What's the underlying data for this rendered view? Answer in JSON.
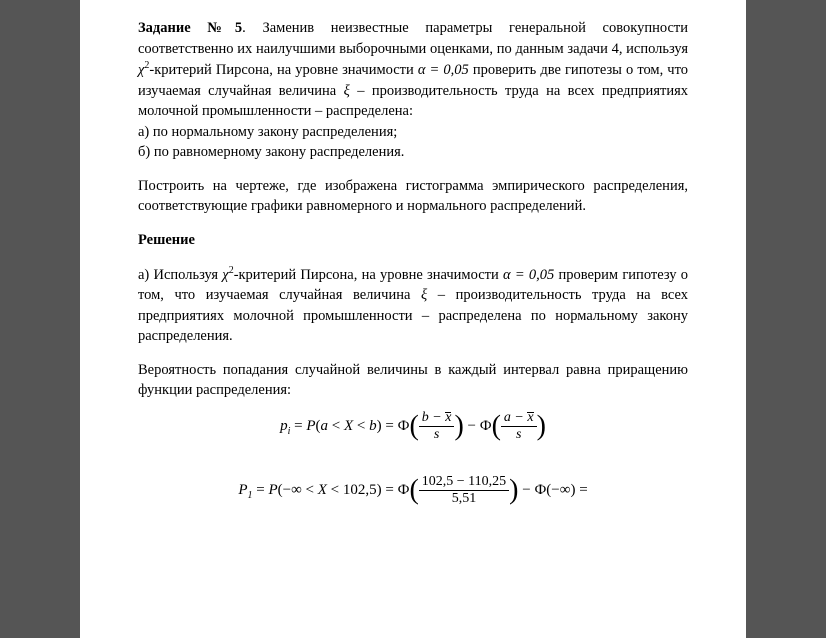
{
  "task_label": "Задание №5",
  "intro_text_1": ". Заменив неизвестные параметры генеральной совокупности соответственно их наилучшими выборочными оценками, по данным задачи 4, используя ",
  "chi2_label": "χ",
  "chi2_sup": "2",
  "intro_text_2": "-критерий Пирсона, на уровне значимости ",
  "alpha_expr": "α = 0,05",
  "intro_text_3": "      проверить две гипотезы о том, что изучаемая случайная величина                              ",
  "xi_var": "ξ",
  "intro_text_4": " – производительность труда на всех предприятиях молочной промышленности – распределена:",
  "item_a": "а) по нормальному закону распределения;",
  "item_b": "б) по равномерному закону распределения.",
  "para2": "Построить на чертеже, где изображена гистограмма эмпирического распределения, соответствующие графики равномерного и нормального распределений.",
  "solution_header": "Решение",
  "sol_a_1": "а) Используя ",
  "sol_a_2": "-критерий Пирсона, на уровне значимости ",
  "sol_a_3": " проверим гипотезу о том, что изучаемая случайная величина ",
  "sol_a_4": " – производительность труда на всех предприятиях молочной промышленности – распределена по нормальному закону распределения.",
  "prob_para": "Вероятность попадания случайной величины в каждый интервал равна приращению функции распределения:",
  "formula1": {
    "lhs_p": "p",
    "lhs_sub": "i",
    "eq": " = ",
    "P": "P",
    "open": "(",
    "a": "a",
    "lt1": " < ",
    "X": "X",
    "lt2": " < ",
    "b": "b",
    "close": ")",
    "Phi": "Ф",
    "num1_left": "b − ",
    "num2_left": "a − ",
    "xbar": "x",
    "den": "s",
    "minus": " − "
  },
  "formula2": {
    "P": "P",
    "sub1": "1",
    "eq": " = ",
    "Pfunc": "P",
    "range_open": "(−∞ < ",
    "X": "X",
    "range_mid": " < 102,5) = ",
    "Phi": "Ф",
    "num": "102,5 − 110,25",
    "den": "5,51",
    "minus_phi_inf": " − Ф(−∞) ="
  }
}
